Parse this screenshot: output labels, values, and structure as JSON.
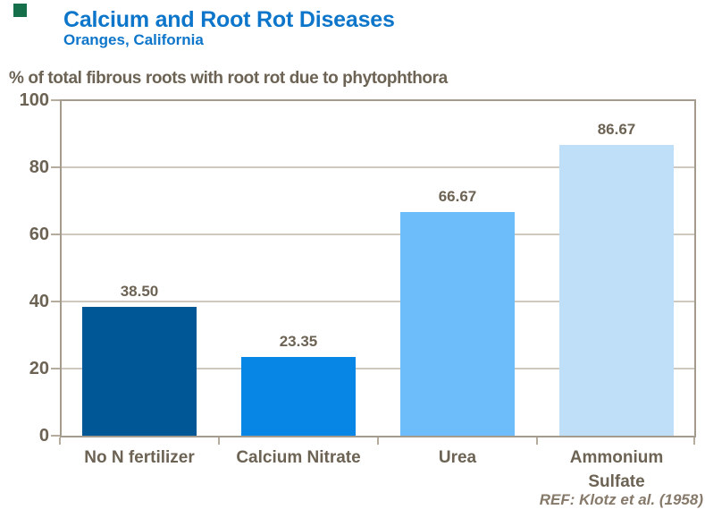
{
  "header": {
    "title": "Calcium and Root Rot Diseases",
    "subtitle": "Oranges, California"
  },
  "y_axis_note": "% of total fibrous roots with root rot due to phytophthora",
  "reference": "REF: Klotz et al. (1958)",
  "colors": {
    "title_blue": "#0D76CA",
    "text_taupe": "#6C6354",
    "reference_taupe": "#86796A",
    "axis_line": "#A59B8C",
    "gridline": "#CFC8BE",
    "tick_mark": "#B6AC9D",
    "logo_green": "#156F4B"
  },
  "chart_data": {
    "type": "bar",
    "title": "Calcium and Root Rot Diseases",
    "subtitle": "Oranges, California",
    "ylabel": "% of total fibrous roots with root rot due to phytophthora",
    "categories": [
      "No N fertilizer",
      "Calcium Nitrate",
      "Urea",
      "Ammonium Sulfate"
    ],
    "category_lines": [
      [
        "No N fertilizer"
      ],
      [
        "Calcium Nitrate"
      ],
      [
        "Urea"
      ],
      [
        "Ammonium",
        "Sulfate"
      ]
    ],
    "values": [
      38.5,
      23.35,
      66.67,
      86.67
    ],
    "value_labels": [
      "38.50",
      "23.35",
      "66.67",
      "86.67"
    ],
    "bar_colors": [
      "#005795",
      "#0786E5",
      "#6EBDFB",
      "#BFDFF8"
    ],
    "ylim": [
      0,
      100
    ],
    "yticks": [
      0,
      20,
      40,
      60,
      80,
      100
    ],
    "grid": true,
    "legend": false,
    "annotation": "REF: Klotz et al. (1958)"
  }
}
